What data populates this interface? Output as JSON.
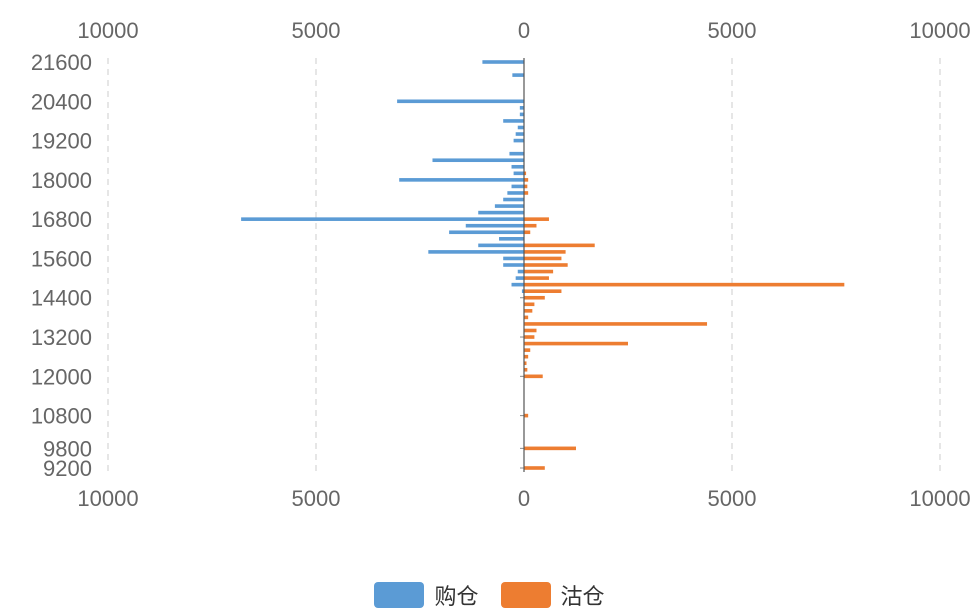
{
  "chart_data": {
    "type": "bar",
    "orientation": "horizontal-diverging",
    "x_ticks_top": [
      "10000",
      "5000",
      "0",
      "5000",
      "10000"
    ],
    "x_ticks_bottom": [
      "10000",
      "5000",
      "0",
      "5000",
      "10000"
    ],
    "xlim": [
      -10000,
      10000
    ],
    "ylim": [
      9000,
      21800
    ],
    "y_ticks": [
      {
        "value": 21600,
        "label": "21600"
      },
      {
        "value": 20400,
        "label": "20400"
      },
      {
        "value": 19200,
        "label": "19200"
      },
      {
        "value": 18000,
        "label": "18000"
      },
      {
        "value": 16800,
        "label": "16800"
      },
      {
        "value": 15600,
        "label": "15600"
      },
      {
        "value": 14400,
        "label": "14400"
      },
      {
        "value": 13200,
        "label": "13200"
      },
      {
        "value": 12000,
        "label": "12000"
      },
      {
        "value": 10800,
        "label": "10800"
      },
      {
        "value": 9800,
        "label": "9800"
      },
      {
        "value": 9200,
        "label": "9200"
      }
    ],
    "grid": true,
    "legend_position": "bottom-center",
    "categories": [
      21600,
      21400,
      21200,
      21000,
      20800,
      20600,
      20400,
      20200,
      20000,
      19800,
      19600,
      19400,
      19200,
      19000,
      18800,
      18600,
      18400,
      18200,
      18000,
      17800,
      17600,
      17400,
      17200,
      17000,
      16800,
      16600,
      16400,
      16200,
      16000,
      15800,
      15600,
      15400,
      15200,
      15000,
      14800,
      14600,
      14400,
      14200,
      14000,
      13800,
      13600,
      13400,
      13200,
      13000,
      12800,
      12600,
      12400,
      12200,
      12000,
      11800,
      11600,
      11400,
      11200,
      11000,
      10800,
      10600,
      10400,
      10200,
      10000,
      9800,
      9600,
      9400,
      9200
    ],
    "series": [
      {
        "name": "购仓",
        "color": "#5b9bd5",
        "direction": "left",
        "values": [
          1000,
          0,
          280,
          0,
          0,
          0,
          3050,
          100,
          100,
          500,
          150,
          200,
          250,
          0,
          350,
          2200,
          300,
          250,
          3000,
          300,
          400,
          500,
          700,
          1100,
          6800,
          1400,
          1800,
          600,
          1100,
          2300,
          500,
          500,
          150,
          200,
          300,
          50,
          0,
          0,
          0,
          0,
          0,
          0,
          0,
          0,
          0,
          0,
          0,
          0,
          0,
          0,
          0,
          0,
          0,
          0,
          0,
          0,
          0,
          0,
          0,
          0,
          0,
          0,
          0
        ]
      },
      {
        "name": "沽仓",
        "color": "#ed7d31",
        "direction": "right",
        "values": [
          0,
          0,
          0,
          0,
          0,
          0,
          0,
          0,
          0,
          0,
          0,
          0,
          0,
          0,
          0,
          0,
          0,
          50,
          100,
          80,
          100,
          0,
          0,
          0,
          600,
          300,
          150,
          0,
          1700,
          1000,
          900,
          1050,
          700,
          600,
          7700,
          900,
          500,
          250,
          200,
          100,
          4400,
          300,
          250,
          2500,
          150,
          100,
          60,
          80,
          450,
          0,
          0,
          0,
          0,
          0,
          100,
          0,
          0,
          0,
          0,
          1250,
          0,
          0,
          500
        ]
      }
    ]
  },
  "legend": {
    "buy": {
      "label": "购仓",
      "color": "#5b9bd5"
    },
    "sell": {
      "label": "沽仓",
      "color": "#ed7d31"
    }
  }
}
